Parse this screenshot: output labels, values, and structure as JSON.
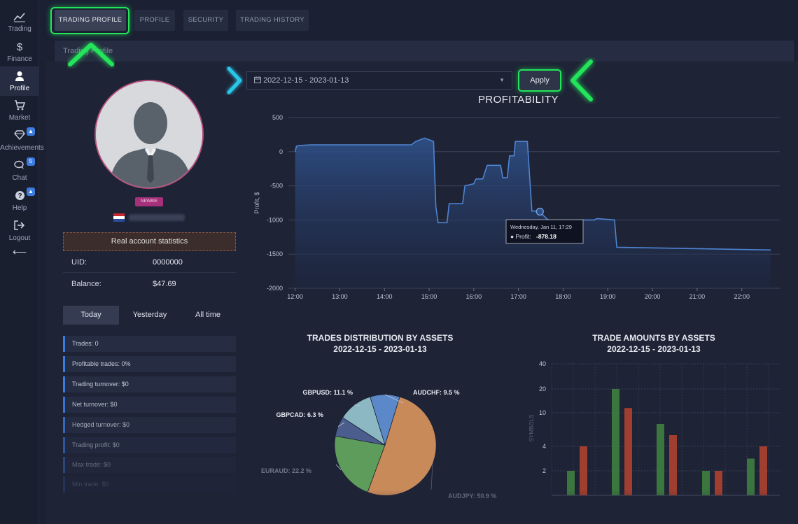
{
  "sidebar": {
    "items": [
      {
        "label": "Trading",
        "icon": "chart-line-icon"
      },
      {
        "label": "Finance",
        "icon": "dollar-icon"
      },
      {
        "label": "Profile",
        "icon": "user-icon"
      },
      {
        "label": "Market",
        "icon": "cart-icon"
      },
      {
        "label": "Achievements",
        "icon": "diamond-icon",
        "badge": "▲"
      },
      {
        "label": "Chat",
        "icon": "chat-icon",
        "badge": "5"
      },
      {
        "label": "Help",
        "icon": "help-icon",
        "badge": "▲"
      },
      {
        "label": "Logout",
        "icon": "logout-icon"
      }
    ],
    "collapse_glyph": "⟵"
  },
  "tabs": {
    "trading_profile": "TRADING PROFILE",
    "profile": "PROFILE",
    "security": "SECURITY",
    "trading_history": "TRADING HISTORY"
  },
  "panel_title": "Trading Profile",
  "profile": {
    "badge": "NEWBIE",
    "real_account": "Real account statistics",
    "uid_label": "UID:",
    "uid_value": "0000000",
    "balance_label": "Balance:",
    "balance_value": "$47.69"
  },
  "period_tabs": {
    "today": "Today",
    "yesterday": "Yesterday",
    "all_time": "All time"
  },
  "stats": [
    "Trades: 0",
    "Profitable trades: 0%",
    "Trading turnover: $0",
    "Net turnover: $0",
    "Hedged turnover: $0",
    "Trading profit: $0",
    "Max trade: $0",
    "Min trade: $0"
  ],
  "date_range": "2022-12-15 - 2023-01-13",
  "apply_label": "Apply",
  "profitability": {
    "title": "PROFITABILITY",
    "ylabel": "Profit, $",
    "tooltip_date": "Wednesday, Jan 11, 17:29",
    "tooltip_label": "Profit:",
    "tooltip_value": "-878.18"
  },
  "distribution": {
    "title": "TRADES DISTRIBUTION BY ASSETS",
    "subtitle": "2022-12-15 - 2023-01-13"
  },
  "amounts": {
    "title": "TRADE AMOUNTS BY ASSETS",
    "subtitle": "2022-12-15 - 2023-01-13",
    "ylabel": "SYMBOLS"
  },
  "chart_data": [
    {
      "type": "area",
      "title": "PROFITABILITY",
      "ylabel": "Profit, $",
      "ylim": [
        -2000,
        500
      ],
      "yticks": [
        500,
        0,
        -500,
        -1000,
        -1500,
        -2000
      ],
      "xticks": [
        "12:00",
        "13:00",
        "14:00",
        "15:00",
        "16:00",
        "17:00",
        "18:00",
        "19:00",
        "20:00",
        "21:00",
        "22:00"
      ],
      "x_hours": [
        12.0,
        12.03,
        12.08,
        12.35,
        14.6,
        14.7,
        14.9,
        15.1,
        15.15,
        15.2,
        15.4,
        15.45,
        15.75,
        15.8,
        16.0,
        16.05,
        16.2,
        16.3,
        16.6,
        16.65,
        16.75,
        16.8,
        16.9,
        16.93,
        17.2,
        17.3,
        17.45,
        17.8,
        18.3,
        18.35,
        18.7,
        18.75,
        19.15,
        19.2,
        22.65
      ],
      "values": [
        0,
        80,
        90,
        100,
        100,
        150,
        200,
        150,
        -800,
        -1040,
        -1040,
        -760,
        -760,
        -500,
        -470,
        -400,
        -400,
        -200,
        -200,
        -380,
        -380,
        -60,
        -60,
        150,
        150,
        -870,
        -870,
        -1080,
        -1080,
        -1000,
        -1000,
        -980,
        -1000,
        -1400,
        -1440
      ],
      "tooltip": {
        "x": "Wednesday, Jan 11, 17:29",
        "y": -878.18
      }
    },
    {
      "type": "pie",
      "title": "TRADES DISTRIBUTION BY ASSETS",
      "subtitle": "2022-12-15 - 2023-01-13",
      "labels": [
        "AUDCHF",
        "AUDJPY",
        "EURAUD",
        "GBPCAD",
        "GBPUSD"
      ],
      "values": [
        9.5,
        50.9,
        22.2,
        6.3,
        11.1
      ],
      "colors": [
        "#5a88c9",
        "#c98a5a",
        "#5d9c5a",
        "#4a5d8c",
        "#8cb8c4"
      ],
      "value_labels": [
        "AUDCHF: 9.5 %",
        "AUDJPY: 50.9 %",
        "EURAUD: 22.2 %",
        "GBPCAD: 6.3 %",
        "GBPUSD: 11.1 %"
      ]
    },
    {
      "type": "bar",
      "title": "TRADE AMOUNTS BY ASSETS",
      "subtitle": "2022-12-15 - 2023-01-13",
      "ylabel": "SYMBOLS",
      "yticks": [
        2,
        4,
        10,
        20,
        40
      ],
      "series": [
        {
          "values": [
            2,
            20,
            8,
            2,
            3
          ],
          "color": "#3e7b40"
        },
        {
          "values": [
            4,
            12,
            6,
            2,
            4
          ],
          "color": "#a8402f"
        }
      ]
    }
  ]
}
